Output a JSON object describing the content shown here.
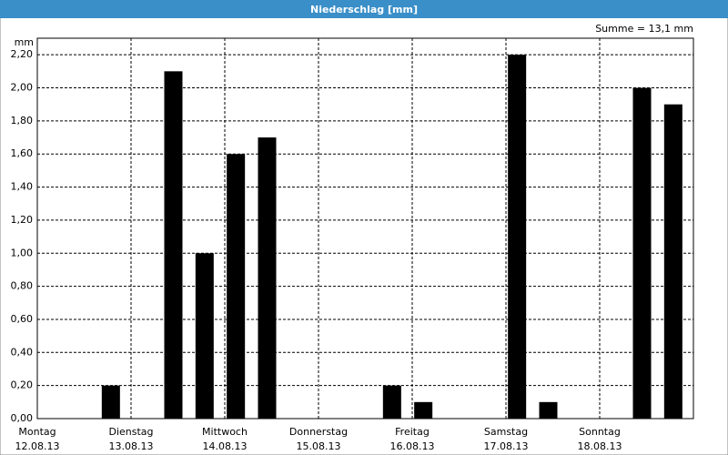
{
  "window_title": "Niederschlag [mm]",
  "chart_data": {
    "type": "bar",
    "y_unit": "mm",
    "annotation": "Summe = 13,1 mm",
    "days": [
      {
        "name": "Montag",
        "date": "12.08.13"
      },
      {
        "name": "Dienstag",
        "date": "13.08.13"
      },
      {
        "name": "Mittwoch",
        "date": "14.08.13"
      },
      {
        "name": "Donnerstag",
        "date": "15.08.13"
      },
      {
        "name": "Freitag",
        "date": "16.08.13"
      },
      {
        "name": "Samstag",
        "date": "17.08.13"
      },
      {
        "name": "Sonntag",
        "date": "18.08.13"
      }
    ],
    "values": [
      0,
      0,
      0.2,
      0,
      2.1,
      1.0,
      1.6,
      1.7,
      0,
      0,
      0,
      0.2,
      0.1,
      0,
      0,
      2.2,
      0.1,
      0,
      0,
      2.0,
      1.9
    ],
    "color": "#000000",
    "ylim": [
      0,
      2.3
    ],
    "yticks": [
      {
        "value": 0,
        "label": "0,00"
      },
      {
        "value": 0.2,
        "label": "0,20"
      },
      {
        "value": 0.4,
        "label": "0,40"
      },
      {
        "value": 0.6,
        "label": "0,60"
      },
      {
        "value": 0.8,
        "label": "0,80"
      },
      {
        "value": 1.0,
        "label": "1,00"
      },
      {
        "value": 1.2,
        "label": "1,20"
      },
      {
        "value": 1.4,
        "label": "1,40"
      },
      {
        "value": 1.6,
        "label": "1,60"
      },
      {
        "value": 1.8,
        "label": "1,80"
      },
      {
        "value": 2.0,
        "label": "2,00"
      },
      {
        "value": 2.2,
        "label": "2,20"
      }
    ],
    "grid": true
  }
}
